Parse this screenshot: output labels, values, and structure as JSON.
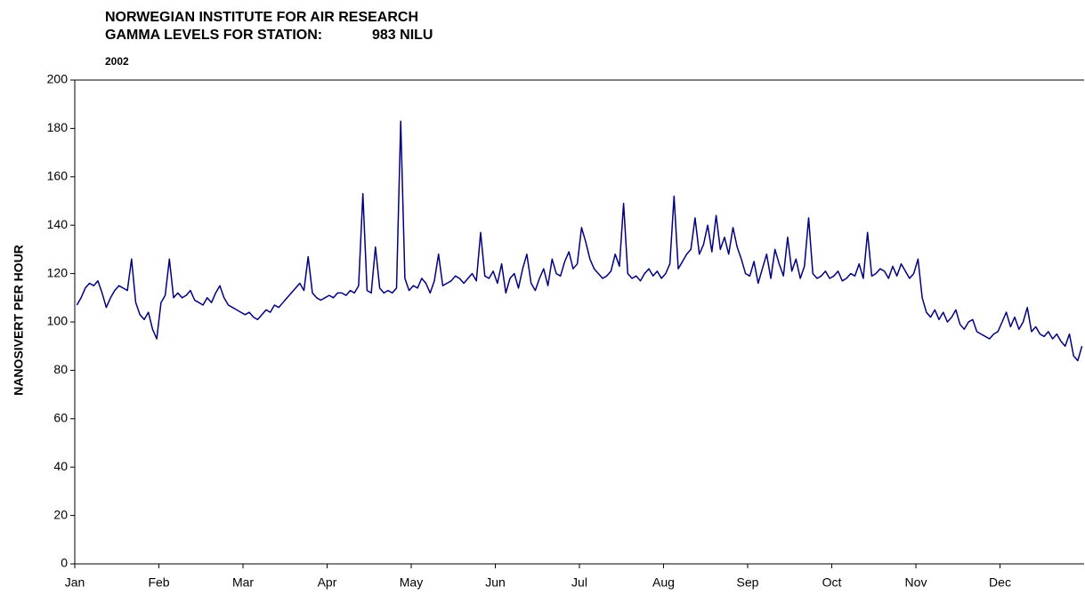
{
  "chart_data": {
    "type": "line",
    "title": "NORWEGIAN INSTITUTE FOR AIR RESEARCH",
    "subtitle": "GAMMA LEVELS FOR STATION:",
    "station": "983 NILU",
    "year": "2002",
    "ylabel": "NANOSIVERT PER HOUR",
    "xticks": [
      "Jan",
      "Feb",
      "Mar",
      "Apr",
      "May",
      "Jun",
      "Jul",
      "Aug",
      "Sep",
      "Oct",
      "Nov",
      "Dec"
    ],
    "ylim": [
      0,
      200
    ],
    "yticks": [
      0,
      20,
      40,
      60,
      80,
      100,
      120,
      140,
      160,
      180,
      200
    ],
    "color": "#000080",
    "values": [
      107,
      110,
      114,
      116,
      115,
      117,
      112,
      106,
      110,
      113,
      115,
      114,
      113,
      126,
      108,
      103,
      101,
      104,
      97,
      93,
      108,
      111,
      126,
      110,
      112,
      110,
      111,
      113,
      109,
      108,
      107,
      110,
      108,
      112,
      115,
      110,
      107,
      106,
      105,
      104,
      103,
      104,
      102,
      101,
      103,
      105,
      104,
      107,
      106,
      108,
      110,
      112,
      114,
      116,
      113,
      127,
      112,
      110,
      109,
      110,
      111,
      110,
      112,
      112,
      111,
      113,
      112,
      115,
      153,
      113,
      112,
      131,
      114,
      112,
      113,
      112,
      114,
      183,
      118,
      113,
      115,
      114,
      118,
      116,
      112,
      117,
      128,
      115,
      116,
      117,
      119,
      118,
      116,
      118,
      120,
      117,
      137,
      119,
      118,
      121,
      116,
      124,
      112,
      118,
      120,
      114,
      122,
      128,
      116,
      113,
      118,
      122,
      115,
      126,
      120,
      119,
      125,
      129,
      122,
      124,
      139,
      133,
      126,
      122,
      120,
      118,
      119,
      121,
      128,
      123,
      149,
      120,
      118,
      119,
      117,
      120,
      122,
      119,
      121,
      118,
      120,
      124,
      152,
      122,
      125,
      128,
      130,
      143,
      128,
      132,
      140,
      129,
      144,
      130,
      135,
      128,
      139,
      131,
      126,
      120,
      119,
      125,
      116,
      122,
      128,
      118,
      130,
      124,
      119,
      135,
      121,
      126,
      118,
      123,
      143,
      120,
      118,
      119,
      121,
      118,
      119,
      121,
      117,
      118,
      120,
      119,
      124,
      118,
      137,
      119,
      120,
      122,
      121,
      118,
      123,
      119,
      124,
      121,
      118,
      120,
      126,
      110,
      104,
      102,
      105,
      101,
      104,
      100,
      102,
      105,
      99,
      97,
      100,
      101,
      96,
      95,
      94,
      93,
      95,
      96,
      100,
      104,
      98,
      102,
      97,
      100,
      106,
      96,
      98,
      95,
      94,
      96,
      93,
      95,
      92,
      90,
      95,
      86,
      84,
      90
    ]
  }
}
